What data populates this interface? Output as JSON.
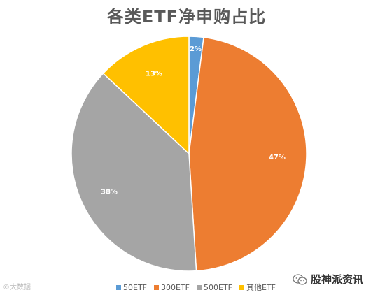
{
  "chart_data": {
    "type": "pie",
    "title": "各类ETF净申购占比",
    "categories": [
      "50ETF",
      "300ETF",
      "500ETF",
      "其他ETF"
    ],
    "values": [
      2,
      47,
      38,
      13
    ],
    "labels": [
      "2%",
      "47%",
      "38%",
      "13%"
    ],
    "colors": [
      "#5b9bd5",
      "#ed7d31",
      "#a5a5a5",
      "#ffc000"
    ],
    "legend_position": "bottom"
  },
  "watermark": {
    "left_text": "©大数据",
    "right_text": "股神派资讯"
  }
}
